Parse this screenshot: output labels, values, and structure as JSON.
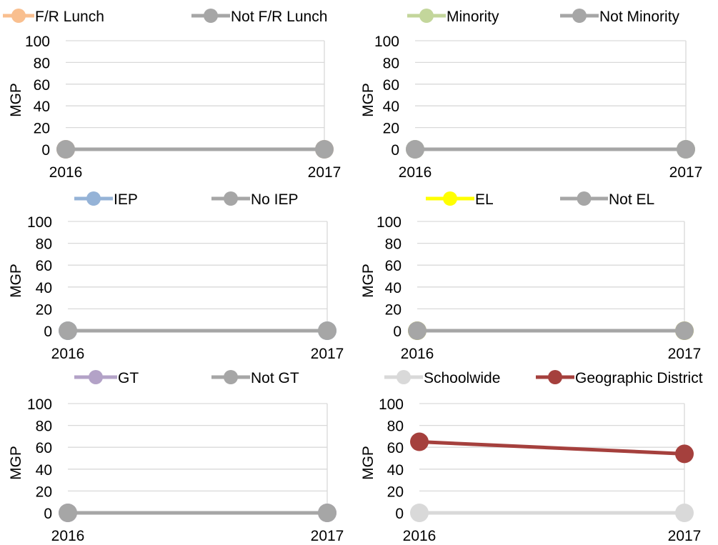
{
  "colors": {
    "gridline": "#d9d9d9",
    "not_group": "#a6a6a6",
    "frl": "#f9bf8f",
    "minority": "#c3d69b",
    "iep": "#95b3d7",
    "el": "#ffff00",
    "gt": "#b3a2c7",
    "schoolwide": "#d9d9d9",
    "district": "#a5403d"
  },
  "title_fragment": "",
  "chart_data": [
    {
      "type": "line",
      "x": [
        "2016",
        "2017"
      ],
      "ylabel": "MGP",
      "ylim": [
        0,
        100
      ],
      "yticks": [
        0,
        20,
        40,
        60,
        80,
        100
      ],
      "grid": true,
      "legend_position": "top",
      "series": [
        {
          "name": "F/R Lunch",
          "color": "#f9bf8f",
          "values": [
            0,
            0
          ]
        },
        {
          "name": "Not F/R Lunch",
          "color": "#a6a6a6",
          "values": [
            0,
            0
          ]
        }
      ]
    },
    {
      "type": "line",
      "x": [
        "2016",
        "2017"
      ],
      "ylabel": "MGP",
      "ylim": [
        0,
        100
      ],
      "yticks": [
        0,
        20,
        40,
        60,
        80,
        100
      ],
      "grid": true,
      "legend_position": "top",
      "series": [
        {
          "name": "Minority",
          "color": "#c3d69b",
          "values": [
            0,
            0
          ]
        },
        {
          "name": "Not Minority",
          "color": "#a6a6a6",
          "values": [
            0,
            0
          ]
        }
      ]
    },
    {
      "type": "line",
      "x": [
        "2016",
        "2017"
      ],
      "ylabel": "MGP",
      "ylim": [
        0,
        100
      ],
      "yticks": [
        0,
        20,
        40,
        60,
        80,
        100
      ],
      "grid": true,
      "legend_position": "top",
      "series": [
        {
          "name": "IEP",
          "color": "#95b3d7",
          "values": [
            0,
            0
          ]
        },
        {
          "name": "No IEP",
          "color": "#a6a6a6",
          "values": [
            0,
            0
          ]
        }
      ]
    },
    {
      "type": "line",
      "x": [
        "2016",
        "2017"
      ],
      "ylabel": "MGP",
      "ylim": [
        0,
        100
      ],
      "yticks": [
        0,
        20,
        40,
        60,
        80,
        100
      ],
      "grid": true,
      "legend_position": "top",
      "series": [
        {
          "name": "EL",
          "color": "#ffff00",
          "values": [
            0,
            0
          ]
        },
        {
          "name": "Not EL",
          "color": "#a6a6a6",
          "values": [
            0,
            0
          ]
        }
      ]
    },
    {
      "type": "line",
      "x": [
        "2016",
        "2017"
      ],
      "ylabel": "MGP",
      "ylim": [
        0,
        100
      ],
      "yticks": [
        0,
        20,
        40,
        60,
        80,
        100
      ],
      "grid": true,
      "legend_position": "top",
      "series": [
        {
          "name": "GT",
          "color": "#b3a2c7",
          "values": [
            0,
            0
          ]
        },
        {
          "name": "Not GT",
          "color": "#a6a6a6",
          "values": [
            0,
            0
          ]
        }
      ]
    },
    {
      "type": "line",
      "x": [
        "2016",
        "2017"
      ],
      "ylabel": "MGP",
      "ylim": [
        0,
        100
      ],
      "yticks": [
        0,
        20,
        40,
        60,
        80,
        100
      ],
      "grid": true,
      "legend_position": "top",
      "series": [
        {
          "name": "Schoolwide",
          "color": "#d9d9d9",
          "values": [
            0,
            0
          ]
        },
        {
          "name": "Geographic District",
          "color": "#a5403d",
          "values": [
            65,
            54
          ]
        }
      ]
    }
  ]
}
